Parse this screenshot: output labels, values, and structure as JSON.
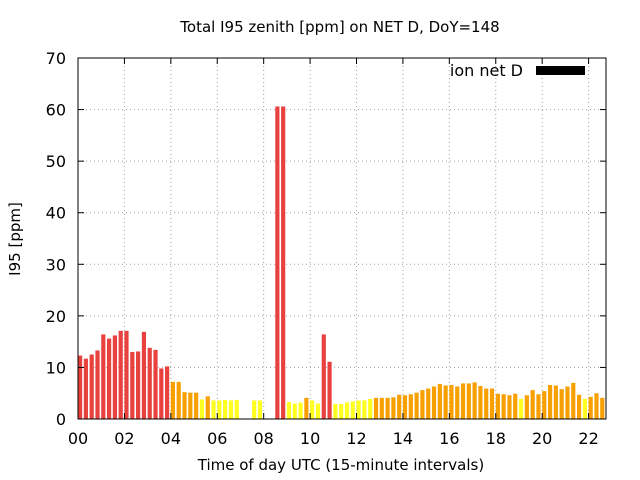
{
  "chart_data": {
    "type": "bar",
    "title": "Total I95 zenith [ppm] on NET D, DoY=148",
    "xlabel": "Time of day UTC (15-minute intervals)",
    "ylabel": "I95 [ppm]",
    "ylim": [
      0,
      70
    ],
    "xlim": [
      0,
      22.75
    ],
    "yticks": [
      0,
      10,
      20,
      30,
      40,
      50,
      60,
      70
    ],
    "xticks": [
      0,
      2,
      4,
      6,
      8,
      10,
      12,
      14,
      16,
      18,
      20,
      22
    ],
    "xtick_labels": [
      "00",
      "02",
      "04",
      "06",
      "08",
      "10",
      "12",
      "14",
      "16",
      "18",
      "20",
      "22"
    ],
    "grid": true,
    "legend": {
      "label": "ion net D",
      "color": "#000000",
      "position": "top-right"
    },
    "bar_interval_hours": 0.25,
    "colors": {
      "red": "#e8413e",
      "orange": "#f7a000",
      "yellow": "#ffff20"
    },
    "bars": [
      {
        "t": 0.0,
        "v": 12.3,
        "c": "red"
      },
      {
        "t": 0.25,
        "v": 11.7,
        "c": "red"
      },
      {
        "t": 0.5,
        "v": 12.5,
        "c": "red"
      },
      {
        "t": 0.75,
        "v": 13.3,
        "c": "red"
      },
      {
        "t": 1.0,
        "v": 16.4,
        "c": "red"
      },
      {
        "t": 1.25,
        "v": 15.6,
        "c": "red"
      },
      {
        "t": 1.5,
        "v": 16.2,
        "c": "red"
      },
      {
        "t": 1.75,
        "v": 17.1,
        "c": "red"
      },
      {
        "t": 2.0,
        "v": 17.1,
        "c": "red"
      },
      {
        "t": 2.25,
        "v": 13.0,
        "c": "red"
      },
      {
        "t": 2.5,
        "v": 13.1,
        "c": "red"
      },
      {
        "t": 2.75,
        "v": 16.9,
        "c": "red"
      },
      {
        "t": 3.0,
        "v": 13.8,
        "c": "red"
      },
      {
        "t": 3.25,
        "v": 13.4,
        "c": "red"
      },
      {
        "t": 3.5,
        "v": 9.8,
        "c": "red"
      },
      {
        "t": 3.75,
        "v": 10.2,
        "c": "red"
      },
      {
        "t": 4.0,
        "v": 7.2,
        "c": "orange"
      },
      {
        "t": 4.25,
        "v": 7.2,
        "c": "orange"
      },
      {
        "t": 4.5,
        "v": 5.2,
        "c": "orange"
      },
      {
        "t": 4.75,
        "v": 5.1,
        "c": "orange"
      },
      {
        "t": 5.0,
        "v": 5.1,
        "c": "orange"
      },
      {
        "t": 5.25,
        "v": 3.8,
        "c": "yellow"
      },
      {
        "t": 5.5,
        "v": 4.4,
        "c": "orange"
      },
      {
        "t": 5.75,
        "v": 3.6,
        "c": "yellow"
      },
      {
        "t": 6.0,
        "v": 3.6,
        "c": "yellow"
      },
      {
        "t": 6.25,
        "v": 3.7,
        "c": "yellow"
      },
      {
        "t": 6.5,
        "v": 3.6,
        "c": "yellow"
      },
      {
        "t": 6.75,
        "v": 3.7,
        "c": "yellow"
      },
      {
        "t": 7.5,
        "v": 3.6,
        "c": "yellow"
      },
      {
        "t": 7.75,
        "v": 3.6,
        "c": "yellow"
      },
      {
        "t": 8.5,
        "v": 60.6,
        "c": "red"
      },
      {
        "t": 8.75,
        "v": 60.6,
        "c": "red"
      },
      {
        "t": 9.0,
        "v": 3.3,
        "c": "yellow"
      },
      {
        "t": 9.25,
        "v": 3.0,
        "c": "yellow"
      },
      {
        "t": 9.5,
        "v": 3.2,
        "c": "yellow"
      },
      {
        "t": 9.75,
        "v": 4.1,
        "c": "orange"
      },
      {
        "t": 10.0,
        "v": 3.6,
        "c": "yellow"
      },
      {
        "t": 10.25,
        "v": 3.0,
        "c": "yellow"
      },
      {
        "t": 10.5,
        "v": 16.4,
        "c": "red"
      },
      {
        "t": 10.75,
        "v": 11.1,
        "c": "red"
      },
      {
        "t": 11.0,
        "v": 2.9,
        "c": "yellow"
      },
      {
        "t": 11.25,
        "v": 2.9,
        "c": "yellow"
      },
      {
        "t": 11.5,
        "v": 3.2,
        "c": "yellow"
      },
      {
        "t": 11.75,
        "v": 3.4,
        "c": "yellow"
      },
      {
        "t": 12.0,
        "v": 3.6,
        "c": "yellow"
      },
      {
        "t": 12.25,
        "v": 3.6,
        "c": "yellow"
      },
      {
        "t": 12.5,
        "v": 3.9,
        "c": "yellow"
      },
      {
        "t": 12.75,
        "v": 4.1,
        "c": "orange"
      },
      {
        "t": 13.0,
        "v": 4.1,
        "c": "orange"
      },
      {
        "t": 13.25,
        "v": 4.1,
        "c": "orange"
      },
      {
        "t": 13.5,
        "v": 4.2,
        "c": "orange"
      },
      {
        "t": 13.75,
        "v": 4.7,
        "c": "orange"
      },
      {
        "t": 14.0,
        "v": 4.6,
        "c": "orange"
      },
      {
        "t": 14.25,
        "v": 4.8,
        "c": "orange"
      },
      {
        "t": 14.5,
        "v": 5.1,
        "c": "orange"
      },
      {
        "t": 14.75,
        "v": 5.6,
        "c": "orange"
      },
      {
        "t": 15.0,
        "v": 5.9,
        "c": "orange"
      },
      {
        "t": 15.25,
        "v": 6.3,
        "c": "orange"
      },
      {
        "t": 15.5,
        "v": 6.8,
        "c": "orange"
      },
      {
        "t": 15.75,
        "v": 6.5,
        "c": "orange"
      },
      {
        "t": 16.0,
        "v": 6.6,
        "c": "orange"
      },
      {
        "t": 16.25,
        "v": 6.3,
        "c": "orange"
      },
      {
        "t": 16.5,
        "v": 6.9,
        "c": "orange"
      },
      {
        "t": 16.75,
        "v": 6.9,
        "c": "orange"
      },
      {
        "t": 17.0,
        "v": 7.1,
        "c": "orange"
      },
      {
        "t": 17.25,
        "v": 6.4,
        "c": "orange"
      },
      {
        "t": 17.5,
        "v": 5.9,
        "c": "orange"
      },
      {
        "t": 17.75,
        "v": 5.9,
        "c": "orange"
      },
      {
        "t": 18.0,
        "v": 4.9,
        "c": "orange"
      },
      {
        "t": 18.25,
        "v": 4.8,
        "c": "orange"
      },
      {
        "t": 18.5,
        "v": 4.6,
        "c": "orange"
      },
      {
        "t": 18.75,
        "v": 4.9,
        "c": "orange"
      },
      {
        "t": 19.0,
        "v": 3.9,
        "c": "yellow"
      },
      {
        "t": 19.25,
        "v": 4.6,
        "c": "orange"
      },
      {
        "t": 19.5,
        "v": 5.6,
        "c": "orange"
      },
      {
        "t": 19.75,
        "v": 4.8,
        "c": "orange"
      },
      {
        "t": 20.0,
        "v": 5.4,
        "c": "orange"
      },
      {
        "t": 20.25,
        "v": 6.6,
        "c": "orange"
      },
      {
        "t": 20.5,
        "v": 6.5,
        "c": "orange"
      },
      {
        "t": 20.75,
        "v": 5.8,
        "c": "orange"
      },
      {
        "t": 21.0,
        "v": 6.3,
        "c": "orange"
      },
      {
        "t": 21.25,
        "v": 7.0,
        "c": "orange"
      },
      {
        "t": 21.5,
        "v": 4.7,
        "c": "orange"
      },
      {
        "t": 21.75,
        "v": 3.9,
        "c": "yellow"
      },
      {
        "t": 22.0,
        "v": 4.3,
        "c": "orange"
      },
      {
        "t": 22.25,
        "v": 5.0,
        "c": "orange"
      },
      {
        "t": 22.5,
        "v": 4.1,
        "c": "orange"
      }
    ]
  }
}
